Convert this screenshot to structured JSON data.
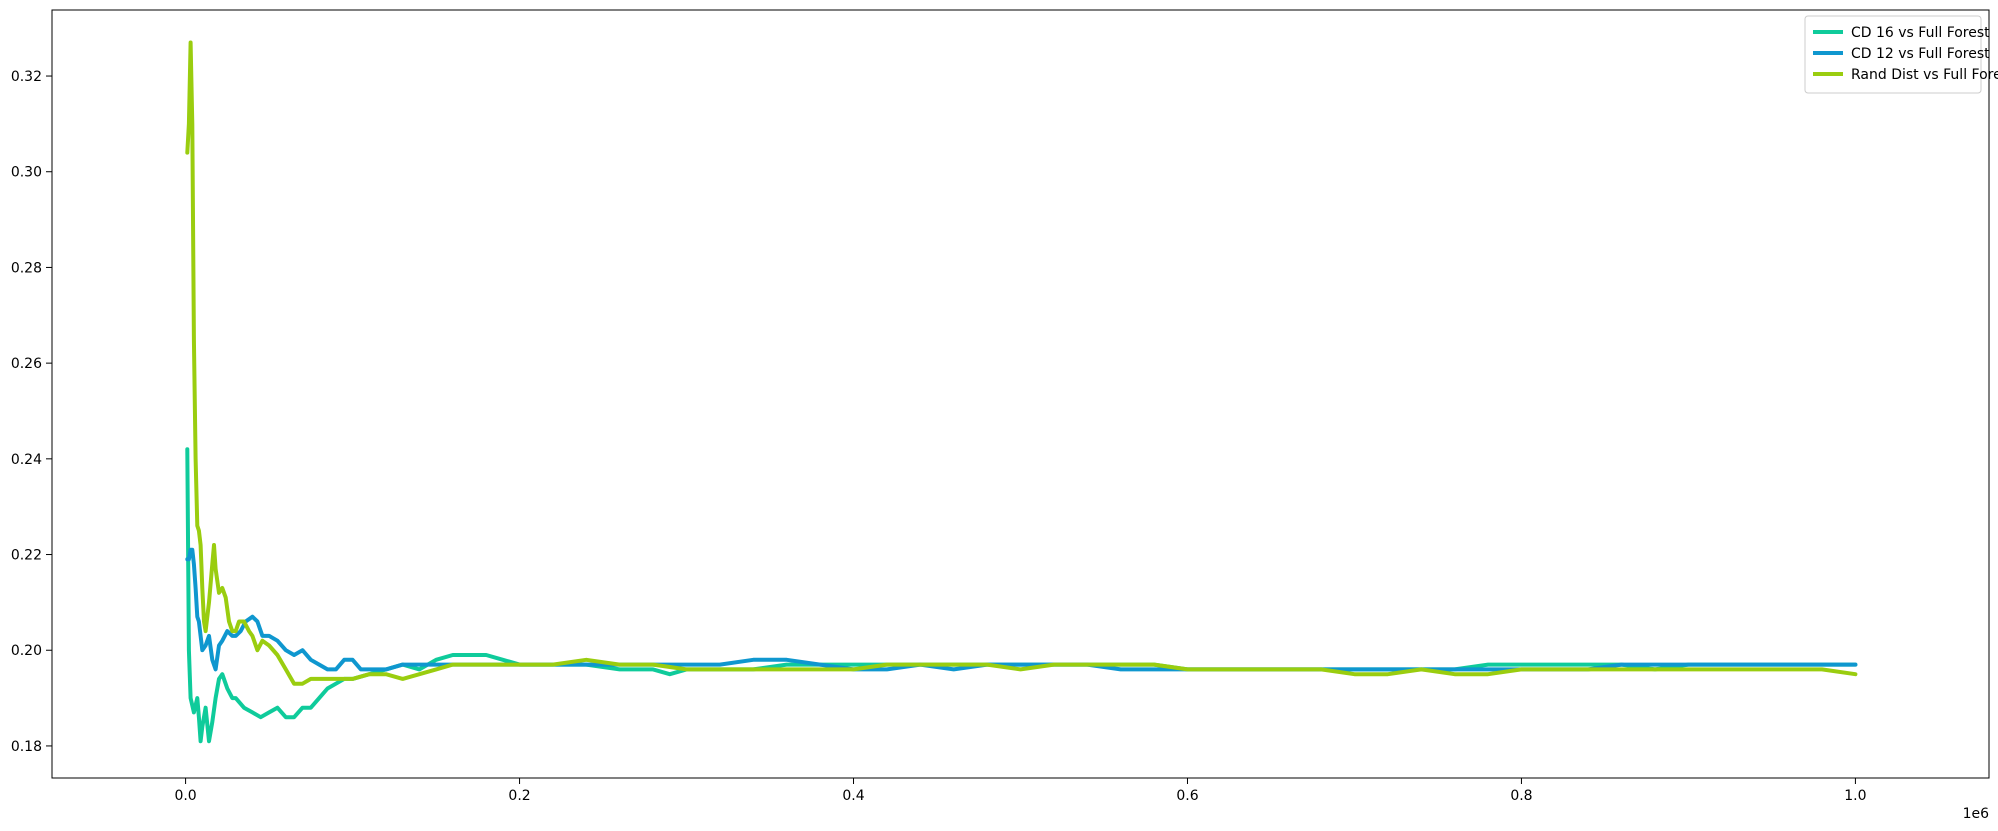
{
  "chart_data": {
    "type": "line",
    "title": "",
    "xlabel": "",
    "ylabel": "",
    "x_offset_label": "1e6",
    "xlim": [
      -80000,
      1080000
    ],
    "ylim": [
      0.1733,
      0.3338
    ],
    "x_ticks": [
      0,
      200000,
      400000,
      600000,
      800000,
      1000000
    ],
    "x_tick_labels": [
      "0.0",
      "0.2",
      "0.4",
      "0.6",
      "0.8",
      "1.0"
    ],
    "y_ticks": [
      0.18,
      0.2,
      0.22,
      0.24,
      0.26,
      0.28,
      0.3,
      0.32
    ],
    "y_tick_labels": [
      "0.18",
      "0.20",
      "0.22",
      "0.24",
      "0.26",
      "0.28",
      "0.30",
      "0.32"
    ],
    "grid": false,
    "legend_position": "top-right",
    "series": [
      {
        "name": "CD 16 vs Full Forest",
        "color": "#0fcb9b",
        "x": [
          1000,
          2000,
          3000,
          5000,
          7000,
          8000,
          9000,
          10000,
          12000,
          14000,
          16000,
          18000,
          20000,
          22000,
          25000,
          28000,
          30000,
          35000,
          40000,
          45000,
          50000,
          55000,
          60000,
          65000,
          70000,
          75000,
          80000,
          85000,
          90000,
          95000,
          100000,
          110000,
          120000,
          130000,
          140000,
          150000,
          160000,
          170000,
          180000,
          190000,
          200000,
          220000,
          240000,
          260000,
          280000,
          290000,
          300000,
          320000,
          340000,
          360000,
          380000,
          400000,
          420000,
          440000,
          460000,
          480000,
          500000,
          520000,
          540000,
          560000,
          580000,
          600000,
          620000,
          640000,
          660000,
          680000,
          700000,
          720000,
          740000,
          760000,
          780000,
          800000,
          820000,
          840000,
          860000,
          880000,
          900000,
          920000,
          940000,
          960000,
          980000,
          1000000
        ],
        "y": [
          0.242,
          0.2,
          0.19,
          0.187,
          0.19,
          0.186,
          0.181,
          0.184,
          0.188,
          0.181,
          0.185,
          0.19,
          0.194,
          0.195,
          0.192,
          0.19,
          0.19,
          0.188,
          0.187,
          0.186,
          0.187,
          0.188,
          0.186,
          0.186,
          0.188,
          0.188,
          0.19,
          0.192,
          0.193,
          0.194,
          0.194,
          0.195,
          0.196,
          0.197,
          0.196,
          0.198,
          0.199,
          0.199,
          0.199,
          0.198,
          0.197,
          0.197,
          0.197,
          0.196,
          0.196,
          0.195,
          0.196,
          0.196,
          0.196,
          0.197,
          0.197,
          0.197,
          0.197,
          0.197,
          0.197,
          0.197,
          0.197,
          0.197,
          0.197,
          0.197,
          0.197,
          0.196,
          0.196,
          0.196,
          0.196,
          0.196,
          0.196,
          0.196,
          0.196,
          0.196,
          0.197,
          0.197,
          0.197,
          0.197,
          0.197,
          0.196,
          0.197,
          0.197,
          0.197,
          0.197,
          0.197,
          0.197
        ]
      },
      {
        "name": "CD 12 vs Full Forest",
        "color": "#0f97cf",
        "x": [
          1000,
          2000,
          3000,
          4000,
          5000,
          6000,
          7000,
          8000,
          10000,
          12000,
          14000,
          16000,
          18000,
          20000,
          22000,
          25000,
          28000,
          30000,
          33000,
          36000,
          40000,
          43000,
          46000,
          50000,
          55000,
          60000,
          65000,
          70000,
          75000,
          80000,
          85000,
          90000,
          95000,
          100000,
          105000,
          110000,
          120000,
          130000,
          140000,
          150000,
          160000,
          170000,
          180000,
          190000,
          200000,
          220000,
          240000,
          260000,
          280000,
          300000,
          320000,
          340000,
          360000,
          380000,
          400000,
          420000,
          440000,
          460000,
          480000,
          500000,
          520000,
          540000,
          560000,
          580000,
          600000,
          620000,
          640000,
          660000,
          680000,
          700000,
          720000,
          740000,
          760000,
          780000,
          800000,
          820000,
          840000,
          860000,
          880000,
          900000,
          920000,
          940000,
          960000,
          980000,
          1000000
        ],
        "y": [
          0.219,
          0.219,
          0.221,
          0.221,
          0.218,
          0.213,
          0.207,
          0.206,
          0.2,
          0.201,
          0.203,
          0.198,
          0.196,
          0.201,
          0.202,
          0.204,
          0.203,
          0.203,
          0.204,
          0.206,
          0.207,
          0.206,
          0.203,
          0.203,
          0.202,
          0.2,
          0.199,
          0.2,
          0.198,
          0.197,
          0.196,
          0.196,
          0.198,
          0.198,
          0.196,
          0.196,
          0.196,
          0.197,
          0.197,
          0.197,
          0.197,
          0.197,
          0.197,
          0.197,
          0.197,
          0.197,
          0.197,
          0.197,
          0.197,
          0.197,
          0.197,
          0.198,
          0.198,
          0.197,
          0.196,
          0.196,
          0.197,
          0.196,
          0.197,
          0.197,
          0.197,
          0.197,
          0.196,
          0.196,
          0.196,
          0.196,
          0.196,
          0.196,
          0.196,
          0.196,
          0.196,
          0.196,
          0.196,
          0.196,
          0.196,
          0.196,
          0.196,
          0.197,
          0.197,
          0.197,
          0.197,
          0.197,
          0.197,
          0.197,
          0.197
        ]
      },
      {
        "name": "Rand Dist vs Full Forest",
        "color": "#9acd0f",
        "x": [
          1000,
          2000,
          3000,
          4000,
          5000,
          6000,
          7000,
          8000,
          9000,
          10000,
          11000,
          12000,
          14000,
          16000,
          17000,
          18000,
          20000,
          22000,
          24000,
          26000,
          28000,
          30000,
          32000,
          35000,
          38000,
          40000,
          43000,
          46000,
          50000,
          55000,
          60000,
          65000,
          70000,
          75000,
          80000,
          85000,
          90000,
          95000,
          100000,
          110000,
          120000,
          130000,
          140000,
          150000,
          160000,
          170000,
          180000,
          190000,
          200000,
          220000,
          240000,
          260000,
          280000,
          300000,
          320000,
          340000,
          360000,
          380000,
          400000,
          420000,
          440000,
          460000,
          480000,
          500000,
          520000,
          540000,
          560000,
          580000,
          600000,
          620000,
          640000,
          660000,
          680000,
          700000,
          720000,
          740000,
          760000,
          780000,
          800000,
          820000,
          840000,
          860000,
          880000,
          900000,
          920000,
          940000,
          960000,
          980000,
          1000000
        ],
        "y": [
          0.304,
          0.31,
          0.327,
          0.31,
          0.265,
          0.24,
          0.226,
          0.225,
          0.222,
          0.213,
          0.206,
          0.204,
          0.21,
          0.218,
          0.222,
          0.217,
          0.212,
          0.213,
          0.211,
          0.206,
          0.204,
          0.204,
          0.206,
          0.206,
          0.204,
          0.203,
          0.2,
          0.202,
          0.201,
          0.199,
          0.196,
          0.193,
          0.193,
          0.194,
          0.194,
          0.194,
          0.194,
          0.194,
          0.194,
          0.195,
          0.195,
          0.194,
          0.195,
          0.196,
          0.197,
          0.197,
          0.197,
          0.197,
          0.197,
          0.197,
          0.198,
          0.197,
          0.197,
          0.196,
          0.196,
          0.196,
          0.196,
          0.196,
          0.196,
          0.197,
          0.197,
          0.197,
          0.197,
          0.196,
          0.197,
          0.197,
          0.197,
          0.197,
          0.196,
          0.196,
          0.196,
          0.196,
          0.196,
          0.195,
          0.195,
          0.196,
          0.195,
          0.195,
          0.196,
          0.196,
          0.196,
          0.196,
          0.196,
          0.196,
          0.196,
          0.196,
          0.196,
          0.196,
          0.195
        ]
      }
    ]
  }
}
